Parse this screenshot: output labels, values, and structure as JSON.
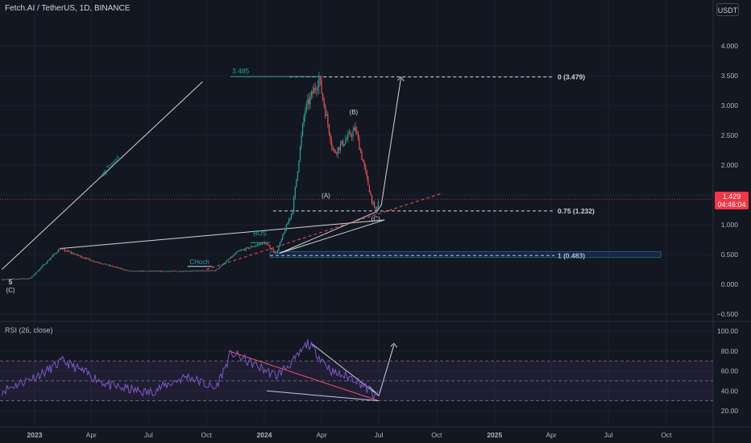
{
  "header": {
    "ticker": "Fetch.AI / TetherUS, 1D, BINANCE",
    "currency_button": "USDT"
  },
  "price_tag": {
    "price": "1.429",
    "countdown": "04:46:04"
  },
  "rsi_label": "RSI (26, close)",
  "colors": {
    "background": "#131722",
    "candle_up": "#26a69a",
    "candle_down": "#ef5350",
    "rsi_line": "#7e57c2",
    "accent": "#f23645"
  },
  "chart_data": [
    {
      "type": "candlestick",
      "price_axis": {
        "ticks": [
          "4.000",
          "3.500",
          "3.000",
          "2.500",
          "2.000",
          "1.500",
          "1.000",
          "0.500",
          "0.000",
          "−0.500"
        ],
        "values": [
          4,
          3.5,
          3,
          2.5,
          2,
          1.5,
          1,
          0.5,
          0,
          -0.5
        ]
      },
      "time_axis": {
        "ticks": [
          "2023",
          "Apr",
          "Jul",
          "Oct",
          "2024",
          "Apr",
          "Jul",
          "Oct",
          "2025",
          "Apr",
          "Jul",
          "Oct"
        ],
        "dates": [
          "2023-01-01",
          "2023-04-01",
          "2023-07-01",
          "2023-10-01",
          "2024-01-01",
          "2024-04-01",
          "2024-07-01",
          "2024-10-01",
          "2025-01-01",
          "2025-04-01",
          "2025-07-01",
          "2025-10-01"
        ]
      },
      "last_price": 1.429,
      "key_points": [
        {
          "date": "2022-11-10",
          "price": 0.08
        },
        {
          "date": "2022-12-25",
          "price": 0.1
        },
        {
          "date": "2023-02-10",
          "price": 0.6
        },
        {
          "date": "2023-04-01",
          "price": 0.4
        },
        {
          "date": "2023-06-01",
          "price": 0.22
        },
        {
          "date": "2023-08-01",
          "price": 0.22
        },
        {
          "date": "2023-10-15",
          "price": 0.23
        },
        {
          "date": "2023-11-20",
          "price": 0.55
        },
        {
          "date": "2024-01-01",
          "price": 0.7
        },
        {
          "date": "2024-01-20",
          "price": 0.52
        },
        {
          "date": "2024-02-15",
          "price": 1.25
        },
        {
          "date": "2024-03-05",
          "price": 2.9
        },
        {
          "date": "2024-03-28",
          "price": 3.45
        },
        {
          "date": "2024-04-20",
          "price": 2.2
        },
        {
          "date": "2024-05-25",
          "price": 2.6
        },
        {
          "date": "2024-06-20",
          "price": 1.4
        },
        {
          "date": "2024-06-26",
          "price": 1.2
        },
        {
          "date": "2024-07-01",
          "price": 1.43
        }
      ],
      "levels": [
        {
          "label": "0 (3.479)",
          "price": 3.479
        },
        {
          "label": "0.75 (1.232)",
          "price": 1.232
        },
        {
          "label": "1 (0.483)",
          "price": 0.483
        }
      ],
      "annotations": [
        "3.485",
        "up Trend",
        "(B)",
        "(A)",
        "(C)",
        "BOS",
        "CHoch",
        "5",
        "(C)"
      ]
    },
    {
      "type": "line",
      "title": "RSI (26, close)",
      "y_axis": {
        "ticks": [
          "100.00",
          "80.00",
          "60.00",
          "40.00",
          "20.00"
        ],
        "values": [
          100,
          80,
          60,
          40,
          20
        ]
      },
      "bands": {
        "upper": 70,
        "middle": 50,
        "lower": 30
      },
      "key_points": [
        {
          "date": "2022-11-10",
          "value": 40
        },
        {
          "date": "2023-01-15",
          "value": 58
        },
        {
          "date": "2023-02-15",
          "value": 70
        },
        {
          "date": "2023-05-01",
          "value": 45
        },
        {
          "date": "2023-07-01",
          "value": 38
        },
        {
          "date": "2023-09-01",
          "value": 55
        },
        {
          "date": "2023-10-15",
          "value": 42
        },
        {
          "date": "2023-11-10",
          "value": 78
        },
        {
          "date": "2024-01-20",
          "value": 55
        },
        {
          "date": "2024-02-20",
          "value": 72
        },
        {
          "date": "2024-03-10",
          "value": 88
        },
        {
          "date": "2024-04-20",
          "value": 58
        },
        {
          "date": "2024-05-25",
          "value": 52
        },
        {
          "date": "2024-06-26",
          "value": 34
        },
        {
          "date": "2024-07-01",
          "value": 38
        }
      ]
    }
  ]
}
